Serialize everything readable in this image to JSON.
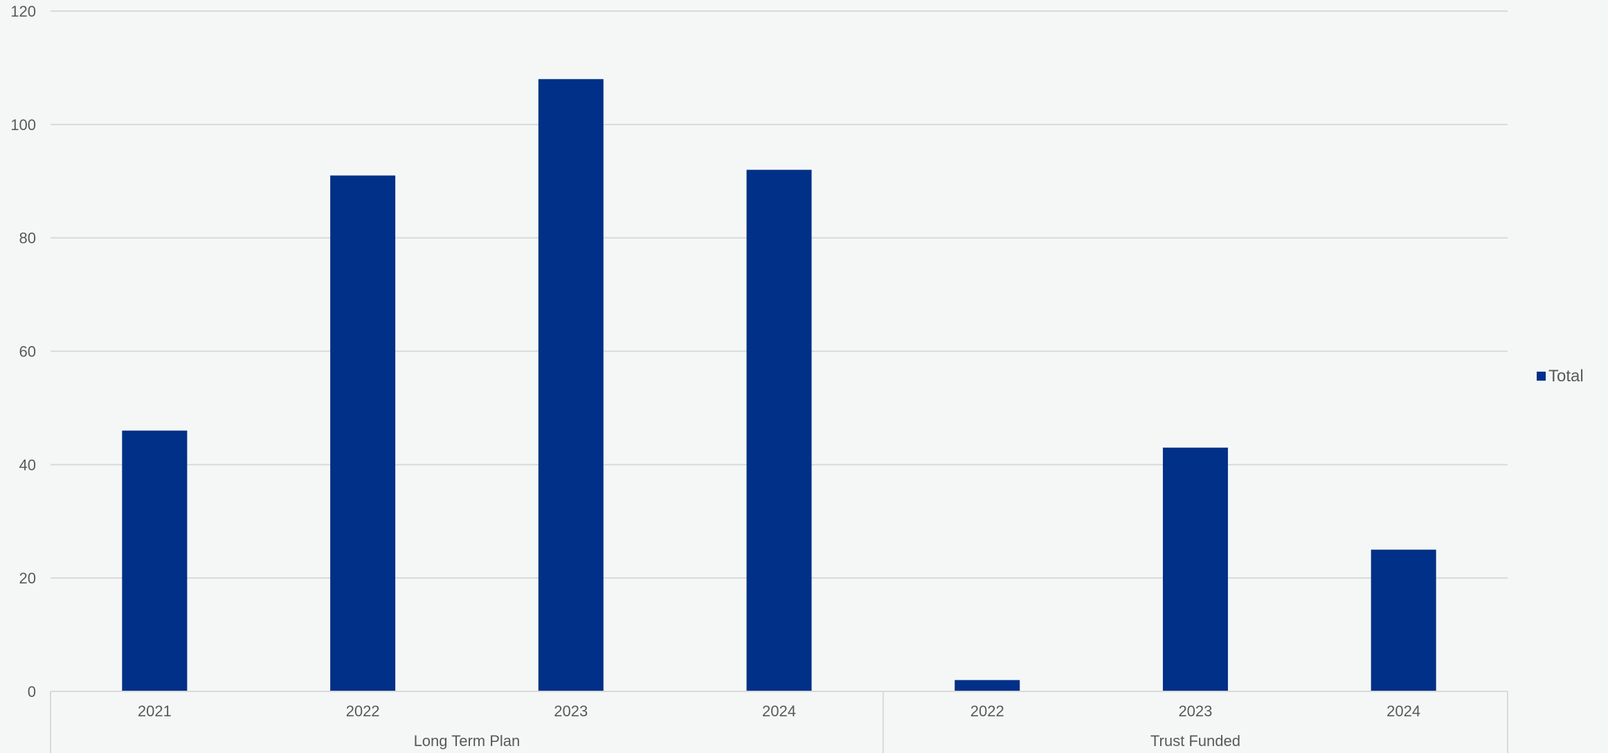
{
  "chart_data": {
    "type": "bar",
    "title": "",
    "xlabel": "",
    "ylabel": "",
    "ylim": [
      0,
      120
    ],
    "yticks": [
      0,
      20,
      40,
      60,
      80,
      100,
      120
    ],
    "groups": [
      {
        "label": "Long Term Plan",
        "categories": [
          "2021",
          "2022",
          "2023",
          "2024"
        ]
      },
      {
        "label": "Trust Funded",
        "categories": [
          "2022",
          "2023",
          "2024"
        ]
      }
    ],
    "series": [
      {
        "name": "Total",
        "values": [
          46,
          91,
          108,
          92,
          2,
          43,
          25
        ],
        "color": "#003087"
      }
    ],
    "grid": true,
    "legend_position": "right"
  }
}
